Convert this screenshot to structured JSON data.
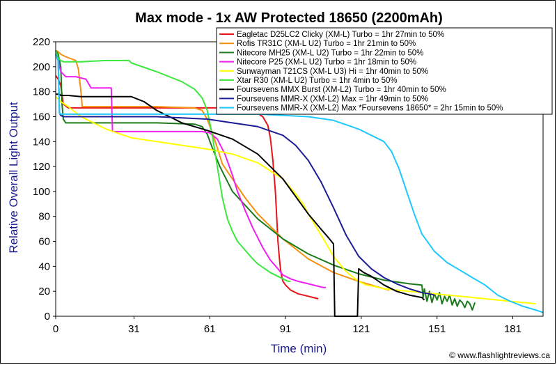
{
  "chart_data": {
    "type": "line",
    "title": "Max mode - 1x AW Protected 18650 (2200mAh)",
    "xlabel": "Time (min)",
    "ylabel": "Relative Overall Light Output",
    "xlim": [
      0,
      193
    ],
    "ylim": [
      0,
      220
    ],
    "xticks": [
      0,
      31,
      61,
      91,
      121,
      151,
      181
    ],
    "yticks": [
      0,
      20,
      40,
      60,
      80,
      100,
      120,
      140,
      160,
      180,
      200,
      220
    ],
    "grid": false,
    "legend_position": "top-right",
    "credit": "© www.flashlightreviews.ca",
    "series": [
      {
        "name": "Eagletac D25LC2 Clicky (XM-L) Turbo = 1hr 27min to 50%",
        "color": "#e8141a",
        "x": [
          0,
          1,
          2,
          3,
          5,
          10,
          20,
          40,
          60,
          70,
          75,
          79,
          82,
          84,
          85,
          86,
          87,
          87.5,
          88,
          88.5,
          89,
          89.5,
          90,
          91,
          93,
          96,
          100,
          102,
          104
        ],
        "y": [
          193,
          190,
          185,
          170,
          167,
          167,
          167,
          167,
          167,
          167,
          166,
          164,
          160,
          153,
          143,
          125,
          100,
          80,
          60,
          48,
          38,
          32,
          28,
          25,
          21,
          18,
          16,
          15,
          14
        ]
      },
      {
        "name": "Rofis TR31C (XM-L U2) Turbo = 1hr 21min to 50%",
        "color": "#f5900e",
        "x": [
          0,
          1,
          2,
          4,
          8,
          9,
          10,
          10.5,
          12,
          20,
          40,
          55,
          58,
          60,
          62,
          64,
          66,
          70,
          75,
          80,
          90,
          100,
          110,
          120,
          125,
          130,
          132
        ],
        "y": [
          213,
          212,
          210,
          208,
          205,
          198,
          180,
          168,
          168,
          168,
          168,
          167,
          165,
          158,
          147,
          135,
          122,
          110,
          95,
          82,
          62,
          46,
          35,
          28,
          25,
          22,
          21
        ]
      },
      {
        "name": "Nitecore MH25 (XM-L U2) Turbo = 1hr 22min to 50%",
        "color": "#1a7a1a",
        "x": [
          0,
          1,
          2,
          2.5,
          3,
          4,
          10,
          20,
          40,
          55,
          58,
          60,
          62,
          65,
          70,
          80,
          90,
          100,
          110,
          120,
          130,
          140,
          145,
          145.5,
          146,
          147,
          148,
          149,
          150,
          151,
          152,
          153,
          154,
          155,
          156,
          157,
          158,
          159,
          160,
          161,
          162,
          163,
          164,
          165,
          166
        ],
        "y": [
          213,
          210,
          200,
          170,
          158,
          155,
          155,
          155,
          155,
          154,
          152,
          146,
          135,
          120,
          100,
          78,
          62,
          50,
          41,
          34,
          29,
          26,
          25,
          15,
          22,
          12,
          20,
          11,
          18,
          13,
          19,
          10,
          16,
          12,
          17,
          9,
          14,
          8,
          13,
          11,
          7,
          12,
          10,
          5,
          11
        ]
      },
      {
        "name": "Nitecore P25 (XM-L U2) Turbo = 1hr 18min to 50%",
        "color": "#f01ff0",
        "x": [
          0,
          1,
          2,
          4,
          8,
          12,
          14,
          16,
          16.5,
          17,
          20,
          22,
          22.5,
          23,
          25,
          35,
          50,
          58,
          61,
          64,
          67,
          70,
          72,
          75,
          78,
          80,
          82,
          85,
          88,
          90,
          93,
          96,
          100,
          104,
          106,
          107
        ],
        "y": [
          213,
          205,
          196,
          192,
          192,
          190,
          183,
          183,
          183,
          183,
          183,
          183,
          148,
          148,
          148,
          148,
          148,
          148,
          147,
          142,
          130,
          113,
          100,
          85,
          71,
          63,
          55,
          45,
          38,
          33,
          30,
          28,
          26,
          24,
          23,
          23
        ]
      },
      {
        "name": "Sunwayman T21CS (XM-L U3) Hi = 1hr 40min to 50%",
        "color": "#ffff00",
        "x": [
          0,
          2,
          5,
          10,
          20,
          30,
          40,
          50,
          60,
          70,
          80,
          90,
          95,
          98,
          100,
          103,
          106,
          108,
          110,
          112,
          114,
          116,
          118,
          120,
          123,
          126,
          130,
          140,
          150,
          160,
          170,
          180,
          190
        ],
        "y": [
          176,
          172,
          168,
          160,
          150,
          143,
          140,
          137,
          134,
          130,
          123,
          110,
          98,
          90,
          82,
          72,
          62,
          55,
          48,
          43,
          38,
          34,
          31,
          28,
          25,
          24,
          22,
          20,
          18,
          16,
          14,
          12,
          10
        ]
      },
      {
        "name": "Xtar R30 (XM-L U2) Turbo = 1hr 4min to 50%",
        "color": "#3ce83c",
        "x": [
          0,
          1,
          2,
          3,
          5,
          10,
          20,
          28,
          29,
          30,
          40,
          50,
          55,
          58,
          60,
          62,
          64,
          66,
          68,
          70,
          72,
          75,
          78,
          80,
          85,
          90,
          92,
          93
        ],
        "y": [
          213,
          207,
          205,
          204,
          204,
          204,
          205,
          205,
          205,
          203,
          196,
          188,
          182,
          175,
          165,
          145,
          120,
          95,
          78,
          68,
          60,
          53,
          46,
          42,
          35,
          30,
          28,
          28
        ]
      },
      {
        "name": "Foursevens MMX Burst (XM-L2) Turbo = 1hr 40min to 50%",
        "color": "#000000",
        "x": [
          0,
          1,
          1.5,
          2,
          5,
          10,
          20,
          30,
          35,
          40,
          50,
          60,
          70,
          80,
          90,
          95,
          100,
          105,
          108,
          110,
          110.5,
          111,
          119,
          119.5,
          120,
          122,
          125,
          130,
          135,
          140,
          145,
          146
        ],
        "y": [
          178,
          178,
          178,
          177,
          177,
          176,
          176,
          176,
          172,
          165,
          155,
          149,
          142,
          130,
          110,
          96,
          82,
          70,
          63,
          58,
          0,
          0,
          0,
          0,
          38,
          35,
          32,
          25,
          20,
          17,
          15,
          13
        ]
      },
      {
        "name": "Foursevens MMR-X (XM-L2) Max = 1hr 49min to 50%",
        "color": "#1c1c96",
        "x": [
          0,
          1,
          1.5,
          2,
          3,
          5,
          10,
          20,
          40,
          60,
          70,
          80,
          90,
          95,
          100,
          105,
          110,
          115,
          120,
          125,
          130,
          135,
          140,
          145,
          148,
          150
        ],
        "y": [
          210,
          205,
          163,
          161,
          160,
          160,
          160,
          160,
          160,
          158,
          155,
          152,
          145,
          137,
          125,
          108,
          87,
          65,
          48,
          38,
          31,
          26,
          22,
          19,
          18,
          17
        ]
      },
      {
        "name": "Foursevens MMR-X (XM-L2) Max *Foursevens 18650* = 2hr 15min to 50%",
        "color": "#1cc8ff",
        "x": [
          0,
          1,
          1.5,
          2,
          3,
          5,
          10,
          20,
          40,
          60,
          80,
          100,
          110,
          120,
          125,
          130,
          133,
          136,
          139,
          142,
          145,
          150,
          155,
          160,
          165,
          170,
          175,
          180,
          185,
          190,
          193
        ],
        "y": [
          210,
          205,
          163,
          162,
          162,
          162,
          162,
          162,
          162,
          162,
          162,
          160,
          157,
          150,
          145,
          140,
          132,
          118,
          100,
          82,
          66,
          52,
          43,
          37,
          31,
          25,
          17,
          12,
          8,
          5,
          3
        ]
      }
    ]
  }
}
